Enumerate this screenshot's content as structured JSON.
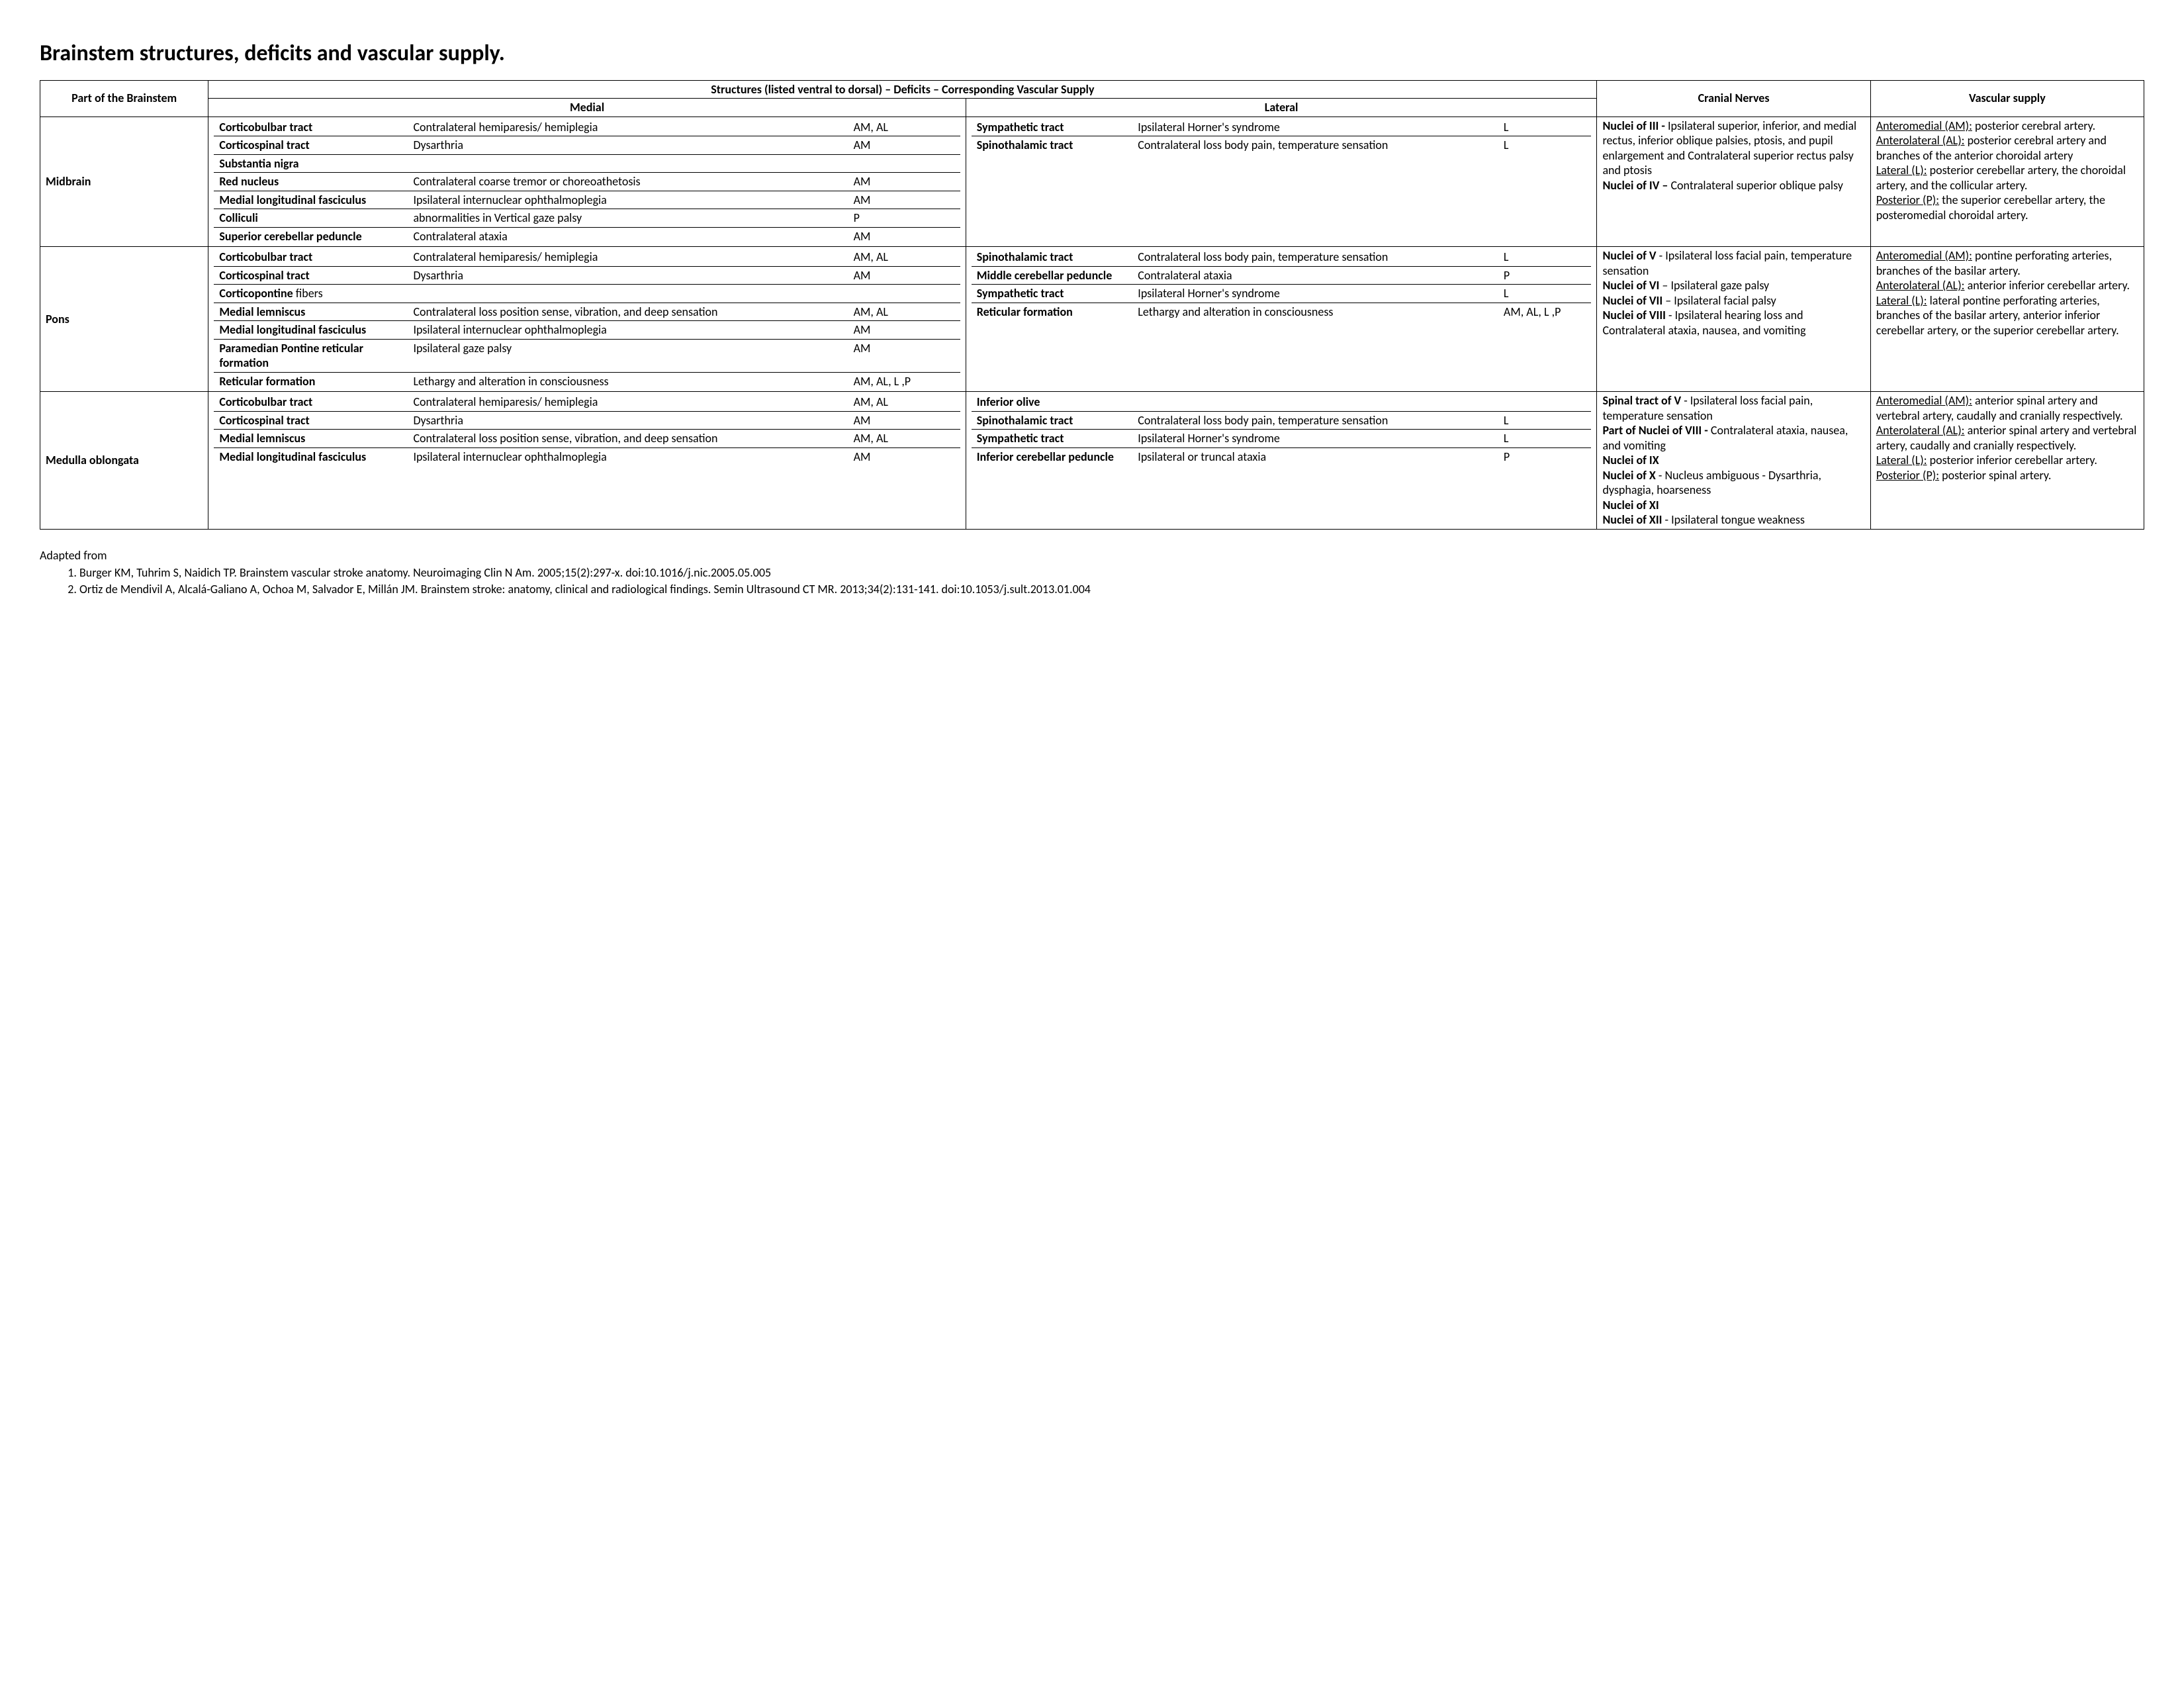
{
  "title": "Brainstem structures, deficits and vascular supply.",
  "headers": {
    "part": "Part of the Brainstem",
    "structures_span": "Structures (listed ventral to dorsal) – Deficits – Corresponding Vascular Supply",
    "medial": "Medial",
    "lateral": "Lateral",
    "cn": "Cranial Nerves",
    "vascular": "Vascular supply"
  },
  "sections": {
    "midbrain": {
      "name": "Midbrain",
      "medial": [
        {
          "s": "Corticobulbar tract",
          "d": "Contralateral hemiparesis/ hemiplegia",
          "c": "AM, AL"
        },
        {
          "s": "Corticospinal tract",
          "d": "Dysarthria",
          "c": "AM"
        },
        {
          "s": "Substantia nigra",
          "d": "",
          "c": ""
        },
        {
          "s": "Red nucleus",
          "d": "Contralateral coarse tremor or choreoathetosis",
          "c": "AM"
        },
        {
          "s": "Medial longitudinal fasciculus",
          "d": "Ipsilateral internuclear ophthalmoplegia",
          "c": "AM"
        },
        {
          "s": "Colliculi",
          "d": "abnormalities in Vertical gaze palsy",
          "c": "P"
        },
        {
          "s": "Superior cerebellar peduncle",
          "d": "Contralateral ataxia",
          "c": "AM"
        }
      ],
      "lateral": [
        {
          "s": "Sympathetic tract",
          "d": "Ipsilateral Horner's syndrome",
          "c": "L"
        },
        {
          "s": "Spinothalamic tract",
          "d": "Contralateral loss body pain, temperature sensation",
          "c": "L"
        }
      ],
      "cn_html": "<span class='b'>Nuclei of III - </span>Ipsilateral superior, inferior, and medial rectus, inferior oblique palsies, ptosis, and pupil enlargement and Contralateral superior rectus palsy and ptosis<br><span class='b'>Nuclei of IV –</span> Contralateral superior oblique palsy",
      "vasc_html": "<span class='u'>Anteromedial (AM):</span> posterior cerebral artery.<br><span class='u'>Anterolateral (AL):</span> posterior cerebral artery and branches of the anterior choroidal artery<br><span class='u'>Lateral (L):</span> posterior cerebellar artery, the choroidal artery, and the collicular artery.<br><span class='u'>Posterior (P):</span> the superior cerebellar artery, the posteromedial choroidal artery."
    },
    "pons": {
      "name": "Pons",
      "medial": [
        {
          "s": "Corticobulbar tract",
          "d": "Contralateral hemiparesis/ hemiplegia",
          "c": "AM, AL"
        },
        {
          "s": "Corticospinal tract",
          "d": "Dysarthria",
          "c": "AM"
        },
        {
          "s_html": "<span class='b'>Corticopontine</span> fibers",
          "d": "",
          "c": ""
        },
        {
          "s": "Medial lemniscus",
          "d": "Contralateral loss position sense, vibration, and deep sensation",
          "c": "AM, AL"
        },
        {
          "s": "Medial longitudinal fasciculus",
          "d": "Ipsilateral internuclear ophthalmoplegia",
          "c": "AM"
        },
        {
          "s": "Paramedian Pontine reticular formation",
          "d": "Ipsilateral gaze palsy",
          "c": "AM"
        },
        {
          "s": "Reticular formation",
          "d": "Lethargy and alteration in consciousness",
          "c": "AM, AL, L ,P"
        }
      ],
      "lateral": [
        {
          "s": "Spinothalamic tract",
          "d": "Contralateral loss body pain, temperature sensation",
          "c": "L"
        },
        {
          "s": "Middle cerebellar peduncle",
          "d": "Contralateral ataxia",
          "c": "P"
        },
        {
          "s": "Sympathetic tract",
          "d": "Ipsilateral Horner's syndrome",
          "c": "L"
        },
        {
          "s": "Reticular formation",
          "d": "Lethargy and alteration in consciousness",
          "c": "AM, AL, L ,P"
        }
      ],
      "cn_html": "<span class='b'>Nuclei of V</span> - Ipsilateral loss facial pain, temperature sensation<br><span class='b'>Nuclei of VI</span> – Ipsilateral gaze palsy<br><span class='b'>Nuclei of VII</span> – Ipsilateral facial palsy<br><span class='b'>Nuclei of VIII</span> - Ipsilateral hearing loss and Contralateral ataxia, nausea, and vomiting",
      "vasc_html": "<span class='u'>Anteromedial (AM):</span> pontine perforating arteries, branches of the basilar artery.<br><span class='u'>Anterolateral (AL):</span> anterior inferior cerebellar artery.<br><span class='u'>Lateral (L):</span> lateral pontine perforating arteries, branches of the basilar artery, anterior inferior cerebellar artery, or the superior cerebellar artery."
    },
    "medulla": {
      "name": "Medulla oblongata",
      "medial": [
        {
          "s": "Corticobulbar tract",
          "d": "Contralateral hemiparesis/ hemiplegia",
          "c": "AM, AL"
        },
        {
          "s": "Corticospinal tract",
          "d": "Dysarthria",
          "c": "AM"
        },
        {
          "s": "Medial lemniscus",
          "d": "Contralateral loss position sense, vibration, and deep sensation",
          "c": "AM, AL"
        },
        {
          "s": "Medial longitudinal fasciculus",
          "d": "Ipsilateral internuclear ophthalmoplegia",
          "c": "AM"
        }
      ],
      "lateral": [
        {
          "s": "Inferior olive",
          "d": "",
          "c": ""
        },
        {
          "s": "Spinothalamic tract",
          "d": "Contralateral loss body pain, temperature sensation",
          "c": "L"
        },
        {
          "s": "Sympathetic tract",
          "d": "Ipsilateral Horner's syndrome",
          "c": "L"
        },
        {
          "s": "Inferior cerebellar peduncle",
          "d": "Ipsilateral or truncal ataxia",
          "c": "P"
        }
      ],
      "cn_html": "<span class='b'>Spinal tract of V</span> - Ipsilateral loss facial pain, temperature sensation<br><span class='b'>Part of Nuclei of VIII - </span>Contralateral ataxia, nausea, and vomiting<br><span class='b'>Nuclei of IX</span><br><span class='b'>Nuclei of X</span> - Nucleus ambiguous - Dysarthria, dysphagia, hoarseness<br><span class='b'>Nuclei of XI</span><br><span class='b'>Nuclei of XII</span> - Ipsilateral tongue weakness",
      "vasc_html": "<span class='u'>Anteromedial (AM):</span> anterior spinal artery and vertebral artery, caudally and cranially respectively.<br><span class='u'>Anterolateral (AL):</span> anterior spinal artery and vertebral artery, caudally and cranially respectively.<br><span class='u'>Lateral (L):</span> posterior inferior cerebellar artery.<br><span class='u'>Posterior (P):</span> posterior spinal artery."
    }
  },
  "refs": {
    "intro": "Adapted from",
    "items": [
      "Burger KM, Tuhrim S, Naidich TP. Brainstem vascular stroke anatomy. Neuroimaging Clin N Am. 2005;15(2):297-x. doi:10.1016/j.nic.2005.05.005",
      "Ortiz de Mendivil A, Alcalá-Galiano A, Ochoa M, Salvador E, Millán JM. Brainstem stroke: anatomy, clinical and radiological findings. Semin Ultrasound CT MR. 2013;34(2):131-141. doi:10.1053/j.sult.2013.01.004"
    ]
  },
  "widths": {
    "part": "8%",
    "medial": "36%",
    "lateral": "30%",
    "cn": "13%",
    "vasc": "13%"
  }
}
